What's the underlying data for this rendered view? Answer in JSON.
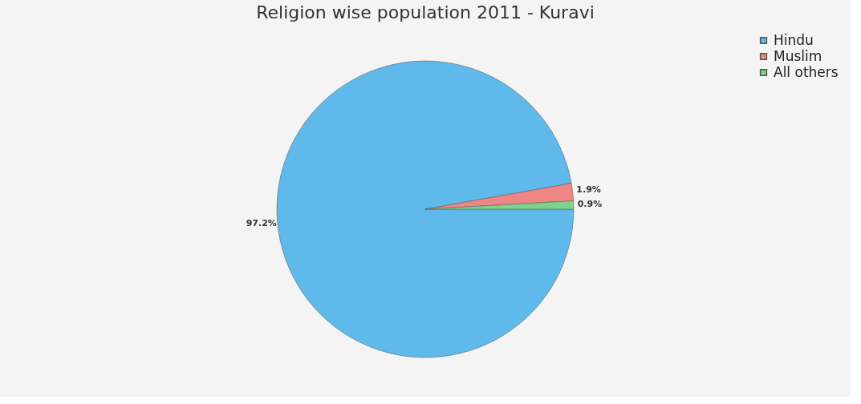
{
  "chart_data": {
    "type": "pie",
    "title": "Religion wise population 2011 - Kuravi",
    "categories": [
      "Hindu",
      "Muslim",
      "All others"
    ],
    "values": [
      97.2,
      1.9,
      0.9
    ],
    "colors": [
      "#5fb9ea",
      "#ee8686",
      "#7fd28b"
    ],
    "value_labels": [
      "97.2%",
      "1.9%",
      "0.9%"
    ],
    "legend": "top right"
  }
}
